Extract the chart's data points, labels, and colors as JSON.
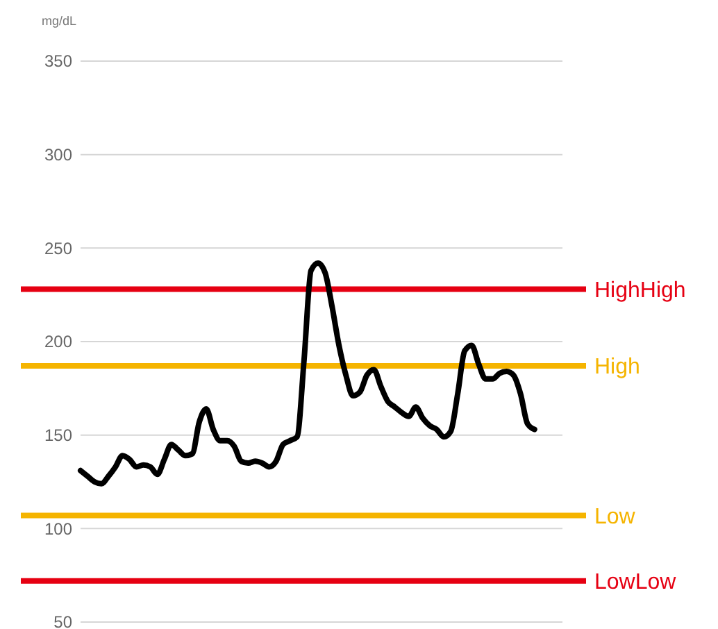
{
  "chart_data": {
    "type": "line",
    "ylabel": "mg/dL",
    "categories": [
      null,
      null,
      null,
      null,
      null,
      null,
      null,
      null,
      null,
      null,
      null,
      null,
      null,
      null,
      null,
      null,
      null,
      null,
      null,
      null,
      null,
      null,
      null,
      null,
      null,
      null,
      null,
      null,
      null,
      null,
      null,
      null,
      null,
      null,
      null,
      null,
      null,
      null,
      null,
      null,
      null,
      null,
      null,
      null,
      null,
      null,
      null,
      null,
      null,
      null,
      null,
      null,
      null,
      null,
      null,
      null,
      null,
      null,
      null,
      null,
      null,
      null,
      null,
      null,
      null,
      null,
      null,
      null,
      null,
      null
    ],
    "series": [
      {
        "color": "#000000",
        "values": [
          131,
          128,
          125,
          124,
          128,
          133,
          139,
          137,
          133,
          134,
          133,
          129,
          137,
          145,
          142,
          139,
          140,
          157,
          164,
          153,
          147,
          147,
          144,
          136,
          135,
          136,
          135,
          133,
          136,
          145,
          147,
          149,
          190,
          238,
          242,
          237,
          219,
          198,
          182,
          171,
          173,
          182,
          185,
          176,
          168,
          165,
          162,
          160,
          165,
          159,
          155,
          153,
          149,
          152,
          172,
          195,
          198,
          188,
          180,
          180,
          183,
          184,
          182,
          172,
          156,
          153,
          null,
          null,
          null,
          null
        ]
      }
    ],
    "ylim": [
      50,
      350
    ],
    "yticks": [
      50,
      100,
      150,
      200,
      250,
      300,
      350
    ],
    "grid": "y",
    "marker": "none",
    "line_style": "solid",
    "ref_lines": [
      {
        "axis": "y",
        "value": 228,
        "label": "HighHigh",
        "color": "#e60012"
      },
      {
        "axis": "y",
        "value": 187,
        "label": "High",
        "color": "#f5b400"
      },
      {
        "axis": "y",
        "value": 107,
        "label": "Low",
        "color": "#f5b400"
      },
      {
        "axis": "y",
        "value": 72,
        "label": "LowLow",
        "color": "#e60012"
      }
    ]
  }
}
